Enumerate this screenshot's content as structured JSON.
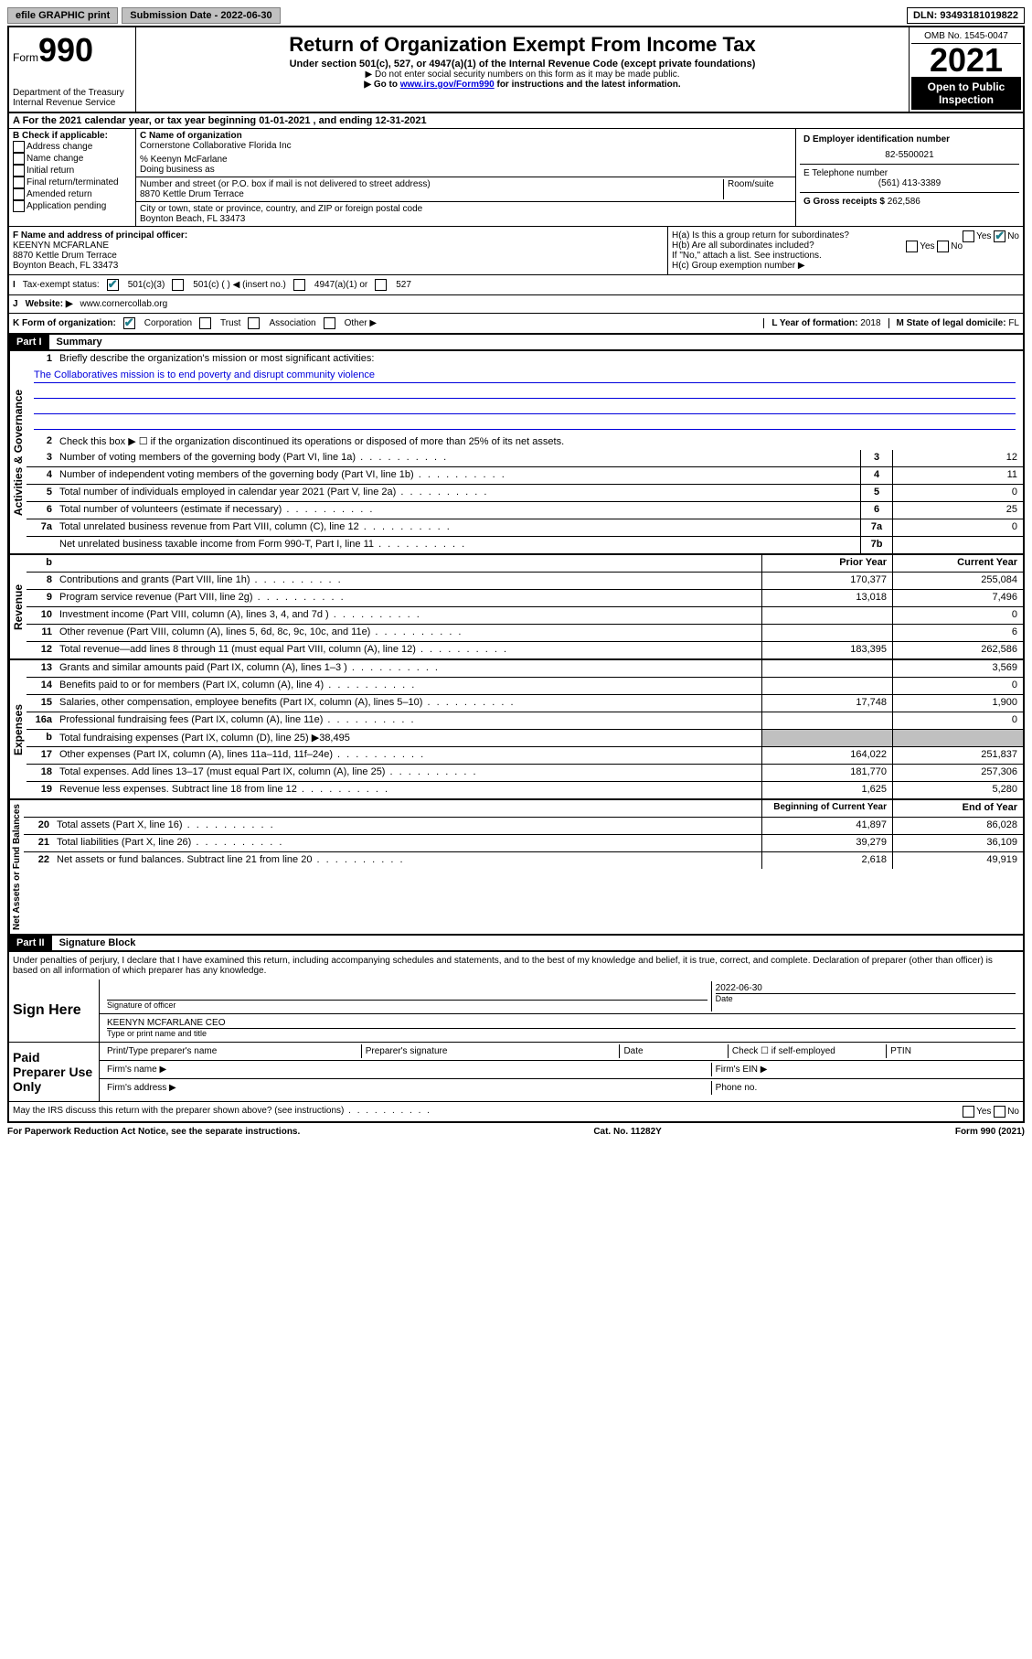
{
  "topbar": {
    "efile": "efile GRAPHIC print",
    "submission_label": "Submission Date - 2022-06-30",
    "dln": "DLN: 93493181019822"
  },
  "header": {
    "form_label": "Form",
    "form_number": "990",
    "dept": "Department of the Treasury",
    "irs": "Internal Revenue Service",
    "title": "Return of Organization Exempt From Income Tax",
    "subtitle": "Under section 501(c), 527, or 4947(a)(1) of the Internal Revenue Code (except private foundations)",
    "note1": "▶ Do not enter social security numbers on this form as it may be made public.",
    "note2_pre": "▶ Go to ",
    "note2_link": "www.irs.gov/Form990",
    "note2_post": " for instructions and the latest information.",
    "omb": "OMB No. 1545-0047",
    "year": "2021",
    "open_public": "Open to Public Inspection"
  },
  "taxyear": "A For the 2021 calendar year, or tax year beginning 01-01-2021    , and ending 12-31-2021",
  "sectionB": {
    "label": "B Check if applicable:",
    "items": [
      "Address change",
      "Name change",
      "Initial return",
      "Final return/terminated",
      "Amended return",
      "Application pending"
    ]
  },
  "sectionC": {
    "name_label": "C Name of organization",
    "name": "Cornerstone Collaborative Florida Inc",
    "care_of": "% Keenyn McFarlane",
    "dba_label": "Doing business as",
    "addr_label": "Number and street (or P.O. box if mail is not delivered to street address)",
    "room_label": "Room/suite",
    "addr": "8870 Kettle Drum Terrace",
    "city_label": "City or town, state or province, country, and ZIP or foreign postal code",
    "city": "Boynton Beach, FL  33473"
  },
  "sectionD": {
    "label": "D Employer identification number",
    "ein": "82-5500021"
  },
  "sectionE": {
    "label": "E Telephone number",
    "phone": "(561) 413-3389"
  },
  "sectionG": {
    "label": "G Gross receipts $",
    "amount": "262,586"
  },
  "sectionF": {
    "label": "F Name and address of principal officer:",
    "name": "KEENYN MCFARLANE",
    "addr1": "8870 Kettle Drum Terrace",
    "addr2": "Boynton Beach, FL  33473"
  },
  "sectionH": {
    "ha": "H(a)  Is this a group return for subordinates?",
    "hb": "H(b)  Are all subordinates included?",
    "hb_note": "If \"No,\" attach a list. See instructions.",
    "hc": "H(c)  Group exemption number ▶",
    "yes": "Yes",
    "no": "No"
  },
  "sectionI": {
    "label": "Tax-exempt status:",
    "opt1": "501(c)(3)",
    "opt2": "501(c) (  ) ◀ (insert no.)",
    "opt3": "4947(a)(1) or",
    "opt4": "527"
  },
  "sectionJ": {
    "label": "Website: ▶",
    "url": "www.cornercollab.org"
  },
  "sectionK": {
    "label": "K Form of organization:",
    "opts": [
      "Corporation",
      "Trust",
      "Association",
      "Other ▶"
    ]
  },
  "sectionL": {
    "label": "L Year of formation:",
    "val": "2018"
  },
  "sectionM": {
    "label": "M State of legal domicile:",
    "val": "FL"
  },
  "part1": {
    "header": "Part I",
    "title": "Summary",
    "vert_gov": "Activities & Governance",
    "vert_rev": "Revenue",
    "vert_exp": "Expenses",
    "vert_net": "Net Assets or Fund Balances",
    "line1_label": "Briefly describe the organization's mission or most significant activities:",
    "mission": "The Collaboratives mission is to end poverty and disrupt community violence",
    "line2": "Check this box ▶ ☐  if the organization discontinued its operations or disposed of more than 25% of its net assets.",
    "lines_gov": [
      {
        "n": "3",
        "d": "Number of voting members of the governing body (Part VI, line 1a)",
        "box": "3",
        "v": "12"
      },
      {
        "n": "4",
        "d": "Number of independent voting members of the governing body (Part VI, line 1b)",
        "box": "4",
        "v": "11"
      },
      {
        "n": "5",
        "d": "Total number of individuals employed in calendar year 2021 (Part V, line 2a)",
        "box": "5",
        "v": "0"
      },
      {
        "n": "6",
        "d": "Total number of volunteers (estimate if necessary)",
        "box": "6",
        "v": "25"
      },
      {
        "n": "7a",
        "d": "Total unrelated business revenue from Part VIII, column (C), line 12",
        "box": "7a",
        "v": "0"
      },
      {
        "n": "",
        "d": "Net unrelated business taxable income from Form 990-T, Part I, line 11",
        "box": "7b",
        "v": ""
      }
    ],
    "col_prior": "Prior Year",
    "col_current": "Current Year",
    "lines_rev": [
      {
        "n": "8",
        "d": "Contributions and grants (Part VIII, line 1h)",
        "p": "170,377",
        "c": "255,084"
      },
      {
        "n": "9",
        "d": "Program service revenue (Part VIII, line 2g)",
        "p": "13,018",
        "c": "7,496"
      },
      {
        "n": "10",
        "d": "Investment income (Part VIII, column (A), lines 3, 4, and 7d )",
        "p": "",
        "c": "0"
      },
      {
        "n": "11",
        "d": "Other revenue (Part VIII, column (A), lines 5, 6d, 8c, 9c, 10c, and 11e)",
        "p": "",
        "c": "6"
      },
      {
        "n": "12",
        "d": "Total revenue—add lines 8 through 11 (must equal Part VIII, column (A), line 12)",
        "p": "183,395",
        "c": "262,586"
      }
    ],
    "lines_exp": [
      {
        "n": "13",
        "d": "Grants and similar amounts paid (Part IX, column (A), lines 1–3 )",
        "p": "",
        "c": "3,569"
      },
      {
        "n": "14",
        "d": "Benefits paid to or for members (Part IX, column (A), line 4)",
        "p": "",
        "c": "0"
      },
      {
        "n": "15",
        "d": "Salaries, other compensation, employee benefits (Part IX, column (A), lines 5–10)",
        "p": "17,748",
        "c": "1,900"
      },
      {
        "n": "16a",
        "d": "Professional fundraising fees (Part IX, column (A), line 11e)",
        "p": "",
        "c": "0"
      },
      {
        "n": "b",
        "d": "Total fundraising expenses (Part IX, column (D), line 25) ▶38,495",
        "gray": true
      },
      {
        "n": "17",
        "d": "Other expenses (Part IX, column (A), lines 11a–11d, 11f–24e)",
        "p": "164,022",
        "c": "251,837"
      },
      {
        "n": "18",
        "d": "Total expenses. Add lines 13–17 (must equal Part IX, column (A), line 25)",
        "p": "181,770",
        "c": "257,306"
      },
      {
        "n": "19",
        "d": "Revenue less expenses. Subtract line 18 from line 12",
        "p": "1,625",
        "c": "5,280"
      }
    ],
    "col_begin": "Beginning of Current Year",
    "col_end": "End of Year",
    "lines_net": [
      {
        "n": "20",
        "d": "Total assets (Part X, line 16)",
        "p": "41,897",
        "c": "86,028"
      },
      {
        "n": "21",
        "d": "Total liabilities (Part X, line 26)",
        "p": "39,279",
        "c": "36,109"
      },
      {
        "n": "22",
        "d": "Net assets or fund balances. Subtract line 21 from line 20",
        "p": "2,618",
        "c": "49,919"
      }
    ]
  },
  "part2": {
    "header": "Part II",
    "title": "Signature Block",
    "penalties": "Under penalties of perjury, I declare that I have examined this return, including accompanying schedules and statements, and to the best of my knowledge and belief, it is true, correct, and complete. Declaration of preparer (other than officer) is based on all information of which preparer has any knowledge.",
    "sign_here": "Sign Here",
    "sig_officer": "Signature of officer",
    "date": "Date",
    "sig_date": "2022-06-30",
    "name_title": "KEENYN MCFARLANE CEO",
    "name_title_label": "Type or print name and title",
    "paid": "Paid Preparer Use Only",
    "prep_name": "Print/Type preparer's name",
    "prep_sig": "Preparer's signature",
    "prep_date": "Date",
    "check_self": "Check ☐ if self-employed",
    "ptin": "PTIN",
    "firm_name": "Firm's name   ▶",
    "firm_ein": "Firm's EIN ▶",
    "firm_addr": "Firm's address ▶",
    "phone": "Phone no.",
    "discuss": "May the IRS discuss this return with the preparer shown above? (see instructions)",
    "yes": "Yes",
    "no": "No"
  },
  "footer": {
    "left": "For Paperwork Reduction Act Notice, see the separate instructions.",
    "center": "Cat. No. 11282Y",
    "right": "Form 990 (2021)"
  }
}
